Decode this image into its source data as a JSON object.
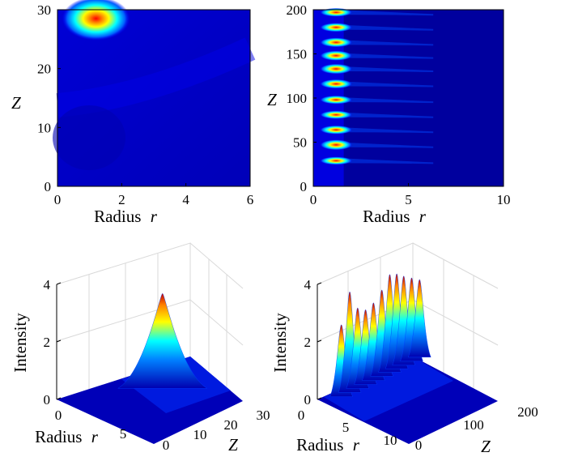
{
  "colormap": [
    "#00008f",
    "#0000ff",
    "#00ffff",
    "#ffff00",
    "#ff0000",
    "#800000"
  ],
  "chart_data": [
    {
      "type": "heatmap",
      "position": "top-left",
      "xlabel": "Radius",
      "xlabel_var": "r",
      "ylabel": "Z",
      "xlim": [
        0,
        6
      ],
      "ylim": [
        0,
        30
      ],
      "xticks": [
        "0",
        "2",
        "4",
        "6"
      ],
      "yticks": [
        "0",
        "10",
        "20",
        "30"
      ],
      "peaks": [
        {
          "r": 1.2,
          "z": 28.5,
          "intensity": 3.3
        }
      ]
    },
    {
      "type": "heatmap",
      "position": "top-right",
      "xlabel": "Radius",
      "xlabel_var": "r",
      "ylabel": "Z",
      "xlim": [
        0,
        10
      ],
      "ylim": [
        0,
        200
      ],
      "xticks": [
        "0",
        "5",
        "10"
      ],
      "yticks": [
        "0",
        "50",
        "100",
        "150",
        "200"
      ],
      "peaks": [
        {
          "r": 1.2,
          "z": 29,
          "intensity": 2.5
        },
        {
          "r": 1.2,
          "z": 47,
          "intensity": 3.5
        },
        {
          "r": 1.2,
          "z": 64,
          "intensity": 2.8
        },
        {
          "r": 1.2,
          "z": 81,
          "intensity": 2.6
        },
        {
          "r": 1.2,
          "z": 98,
          "intensity": 2.7
        },
        {
          "r": 1.2,
          "z": 116,
          "intensity": 3.0
        },
        {
          "r": 1.2,
          "z": 133,
          "intensity": 3.4
        },
        {
          "r": 1.2,
          "z": 148,
          "intensity": 3.3
        },
        {
          "r": 1.2,
          "z": 163,
          "intensity": 3.1
        },
        {
          "r": 1.2,
          "z": 180,
          "intensity": 2.9
        },
        {
          "r": 1.2,
          "z": 197,
          "intensity": 2.7
        }
      ]
    },
    {
      "type": "surface",
      "position": "bottom-left",
      "xlabel": "Radius",
      "xlabel_var": "r",
      "ylabel": "Intensity",
      "zlabel": "Z",
      "zlim": [
        0,
        4
      ],
      "zticks": [
        "0",
        "2",
        "4"
      ],
      "rticks": [
        "0",
        "5"
      ],
      "depthticks": [
        "0",
        "10",
        "20",
        "30"
      ],
      "peaks": [
        {
          "r": 1.2,
          "z": 28.5,
          "intensity": 3.3
        }
      ]
    },
    {
      "type": "surface",
      "position": "bottom-right",
      "xlabel": "Radius",
      "xlabel_var": "r",
      "ylabel": "Intensity",
      "zlabel": "Z",
      "zlim": [
        0,
        4
      ],
      "zticks": [
        "0",
        "2",
        "4"
      ],
      "rticks": [
        "0",
        "5",
        "10"
      ],
      "depthticks": [
        "0",
        "100",
        "200"
      ],
      "peaks": [
        {
          "r": 1.2,
          "z": 29,
          "intensity": 2.5
        },
        {
          "r": 1.2,
          "z": 47,
          "intensity": 3.5
        },
        {
          "r": 1.2,
          "z": 64,
          "intensity": 2.8
        },
        {
          "r": 1.2,
          "z": 81,
          "intensity": 2.6
        },
        {
          "r": 1.2,
          "z": 98,
          "intensity": 2.7
        },
        {
          "r": 1.2,
          "z": 116,
          "intensity": 3.0
        },
        {
          "r": 1.2,
          "z": 133,
          "intensity": 3.4
        },
        {
          "r": 1.2,
          "z": 148,
          "intensity": 3.3
        },
        {
          "r": 1.2,
          "z": 163,
          "intensity": 3.1
        },
        {
          "r": 1.2,
          "z": 180,
          "intensity": 2.9
        },
        {
          "r": 1.2,
          "z": 197,
          "intensity": 2.7
        }
      ]
    }
  ]
}
